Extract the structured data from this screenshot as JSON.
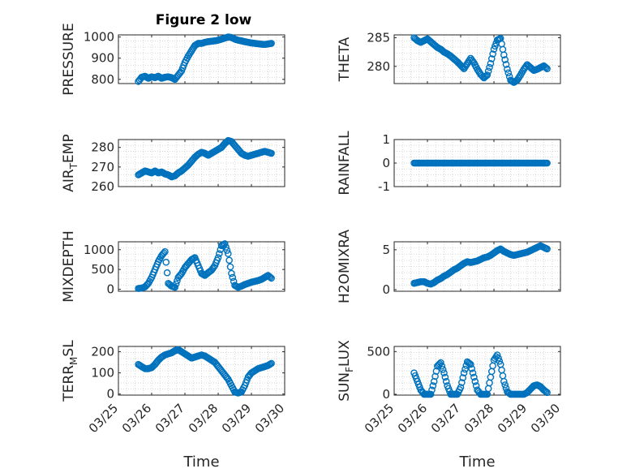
{
  "figure": {
    "title": "Figure 2 low"
  },
  "chart_data": [
    {
      "type": "scatter",
      "ylabel": "PRESSURE",
      "ylim": [
        780,
        1010
      ],
      "yticks": [
        "800",
        "900",
        "1000"
      ],
      "ytickvals": [
        800,
        900,
        1000
      ],
      "title": "Figure 2 low",
      "xlabel": "",
      "color": "#0072bd",
      "x": [
        0.6,
        0.7,
        0.8,
        0.9,
        1.0,
        1.1,
        1.2,
        1.3,
        1.4,
        1.5,
        1.6,
        1.7,
        1.8,
        1.9,
        2.0,
        2.1,
        2.2,
        2.3,
        2.4,
        2.5,
        2.6,
        2.7,
        2.8,
        2.9,
        3.0,
        3.1,
        3.2,
        3.3,
        3.4,
        3.5,
        3.6,
        3.7,
        3.8,
        3.9,
        4.0,
        4.1,
        4.2,
        4.3,
        4.4,
        4.5,
        4.6
      ],
      "y": [
        790,
        810,
        815,
        805,
        812,
        808,
        815,
        805,
        810,
        812,
        808,
        800,
        820,
        840,
        880,
        910,
        935,
        960,
        970,
        970,
        975,
        978,
        980,
        982,
        985,
        990,
        995,
        1000,
        998,
        990,
        985,
        982,
        978,
        975,
        972,
        970,
        968,
        966,
        965,
        967,
        970
      ]
    },
    {
      "type": "scatter",
      "ylabel": "THETA",
      "ylim": [
        277,
        285.5
      ],
      "yticks": [
        "280",
        "285"
      ],
      "ytickvals": [
        280,
        285
      ],
      "xlabel": "",
      "color": "#0072bd",
      "x": [
        0.6,
        0.7,
        0.8,
        0.9,
        1.0,
        1.1,
        1.2,
        1.3,
        1.4,
        1.5,
        1.6,
        1.7,
        1.8,
        1.9,
        2.0,
        2.1,
        2.2,
        2.3,
        2.4,
        2.5,
        2.6,
        2.7,
        2.8,
        2.9,
        3.0,
        3.1,
        3.2,
        3.3,
        3.4,
        3.5,
        3.6,
        3.7,
        3.8,
        3.9,
        4.0,
        4.1,
        4.2,
        4.3,
        4.4,
        4.5,
        4.6
      ],
      "y": [
        285,
        284.5,
        284.2,
        284.5,
        284.8,
        284.3,
        283.8,
        283.3,
        283,
        282.5,
        282.2,
        281.8,
        281.3,
        280.8,
        280.2,
        279.6,
        280.5,
        281.4,
        280.6,
        279.5,
        278.6,
        278,
        278.5,
        280.5,
        283,
        284.6,
        284.9,
        282,
        279.5,
        277.6,
        277.2,
        277.6,
        278.5,
        279.5,
        280.3,
        279.8,
        279.3,
        279.5,
        279.8,
        280.1,
        279.6
      ]
    },
    {
      "type": "scatter",
      "ylabel": "AIR_TEMP",
      "ylim": [
        260,
        284
      ],
      "yticks": [
        "260",
        "270",
        "280"
      ],
      "ytickvals": [
        260,
        270,
        280
      ],
      "xlabel": "",
      "color": "#0072bd",
      "x": [
        0.6,
        0.7,
        0.8,
        0.9,
        1.0,
        1.1,
        1.2,
        1.3,
        1.4,
        1.5,
        1.6,
        1.7,
        1.8,
        1.9,
        2.0,
        2.1,
        2.2,
        2.3,
        2.4,
        2.5,
        2.6,
        2.7,
        2.8,
        2.9,
        3.0,
        3.1,
        3.2,
        3.3,
        3.4,
        3.5,
        3.6,
        3.7,
        3.8,
        3.9,
        4.0,
        4.1,
        4.2,
        4.3,
        4.4,
        4.5,
        4.6
      ],
      "y": [
        266,
        267,
        268,
        267.5,
        267,
        268,
        267,
        267.5,
        266.5,
        266,
        265,
        265.5,
        267,
        268,
        269.5,
        271,
        273,
        275,
        276.5,
        277.5,
        277,
        276,
        277,
        278,
        279,
        280,
        282,
        283.5,
        283,
        281,
        279,
        277,
        276,
        275.5,
        276,
        276.5,
        277,
        277.5,
        278,
        277.5,
        277
      ]
    },
    {
      "type": "scatter",
      "ylabel": "RAINFALL",
      "ylim": [
        -1,
        1
      ],
      "yticks": [
        "-1",
        "0",
        "1"
      ],
      "ytickvals": [
        -1,
        0,
        1
      ],
      "xlabel": "",
      "color": "#0072bd",
      "x": [
        0.6,
        0.7,
        0.8,
        0.9,
        1.0,
        1.1,
        1.2,
        1.3,
        1.4,
        1.5,
        1.6,
        1.7,
        1.8,
        1.9,
        2.0,
        2.1,
        2.2,
        2.3,
        2.4,
        2.5,
        2.6,
        2.7,
        2.8,
        2.9,
        3.0,
        3.1,
        3.2,
        3.3,
        3.4,
        3.5,
        3.6,
        3.7,
        3.8,
        3.9,
        4.0,
        4.1,
        4.2,
        4.3,
        4.4,
        4.5,
        4.6
      ],
      "y": [
        0,
        0,
        0,
        0,
        0,
        0,
        0,
        0,
        0,
        0,
        0,
        0,
        0,
        0,
        0,
        0,
        0,
        0,
        0,
        0,
        0,
        0,
        0,
        0,
        0,
        0,
        0,
        0,
        0,
        0,
        0,
        0,
        0,
        0,
        0,
        0,
        0,
        0,
        0,
        0,
        0
      ]
    },
    {
      "type": "scatter",
      "ylabel": "MIXDEPTH",
      "ylim": [
        -50,
        1200
      ],
      "yticks": [
        "0",
        "500",
        "1000"
      ],
      "ytickvals": [
        0,
        500,
        1000
      ],
      "xlabel": "",
      "color": "#0072bd",
      "x": [
        0.6,
        0.7,
        0.8,
        0.9,
        1.0,
        1.1,
        1.2,
        1.3,
        1.4,
        1.5,
        1.6,
        1.7,
        1.8,
        1.9,
        2.0,
        2.1,
        2.2,
        2.3,
        2.4,
        2.5,
        2.6,
        2.7,
        2.8,
        2.9,
        3.0,
        3.1,
        3.2,
        3.3,
        3.4,
        3.5,
        3.6,
        3.7,
        3.8,
        3.9,
        4.0,
        4.1,
        4.2,
        4.3,
        4.4,
        4.5,
        4.6
      ],
      "y": [
        20,
        30,
        60,
        150,
        300,
        500,
        700,
        850,
        950,
        150,
        80,
        50,
        300,
        400,
        550,
        650,
        750,
        800,
        600,
        400,
        350,
        420,
        480,
        600,
        800,
        1100,
        1150,
        900,
        400,
        100,
        50,
        80,
        120,
        150,
        180,
        200,
        220,
        250,
        300,
        350,
        280
      ]
    },
    {
      "type": "scatter",
      "ylabel": "H2OMIXRA",
      "ylim": [
        -0.2,
        6
      ],
      "yticks": [
        "0",
        "5"
      ],
      "ytickvals": [
        0,
        5
      ],
      "xlabel": "",
      "color": "#0072bd",
      "x": [
        0.6,
        0.7,
        0.8,
        0.9,
        1.0,
        1.1,
        1.2,
        1.3,
        1.4,
        1.5,
        1.6,
        1.7,
        1.8,
        1.9,
        2.0,
        2.1,
        2.2,
        2.3,
        2.4,
        2.5,
        2.6,
        2.7,
        2.8,
        2.9,
        3.0,
        3.1,
        3.2,
        3.3,
        3.4,
        3.5,
        3.6,
        3.7,
        3.8,
        3.9,
        4.0,
        4.1,
        4.2,
        4.3,
        4.4,
        4.5,
        4.6
      ],
      "y": [
        0.8,
        0.9,
        1.0,
        1.0,
        0.8,
        0.7,
        0.9,
        1.2,
        1.4,
        1.7,
        1.9,
        2.2,
        2.5,
        2.7,
        3.0,
        3.3,
        3.5,
        3.4,
        3.5,
        3.6,
        3.8,
        4.0,
        4.1,
        4.3,
        4.6,
        4.9,
        5.1,
        4.8,
        4.6,
        4.4,
        4.3,
        4.4,
        4.5,
        4.6,
        4.7,
        4.9,
        5.1,
        5.3,
        5.5,
        5.3,
        5.1
      ]
    },
    {
      "type": "scatter",
      "ylabel": "TERR_MSL",
      "ylim": [
        -5,
        225
      ],
      "yticks": [
        "0",
        "100",
        "200"
      ],
      "ytickvals": [
        0,
        100,
        200
      ],
      "xlabel": "Time",
      "color": "#0072bd",
      "x": [
        0.6,
        0.7,
        0.8,
        0.9,
        1.0,
        1.1,
        1.2,
        1.3,
        1.4,
        1.5,
        1.6,
        1.7,
        1.8,
        1.9,
        2.0,
        2.1,
        2.2,
        2.3,
        2.4,
        2.5,
        2.6,
        2.7,
        2.8,
        2.9,
        3.0,
        3.1,
        3.2,
        3.3,
        3.4,
        3.5,
        3.6,
        3.7,
        3.8,
        3.9,
        4.0,
        4.1,
        4.2,
        4.3,
        4.4,
        4.5,
        4.6
      ],
      "y": [
        140,
        130,
        120,
        120,
        125,
        140,
        160,
        175,
        185,
        190,
        195,
        205,
        210,
        200,
        190,
        180,
        170,
        175,
        180,
        185,
        180,
        170,
        160,
        150,
        130,
        110,
        90,
        70,
        40,
        10,
        5,
        10,
        40,
        80,
        100,
        110,
        120,
        125,
        130,
        135,
        145
      ]
    },
    {
      "type": "scatter",
      "ylabel": "SUN_FLUX",
      "ylim": [
        -10,
        560
      ],
      "yticks": [
        "0",
        "500"
      ],
      "ytickvals": [
        0,
        500
      ],
      "xlabel": "Time",
      "color": "#0072bd",
      "x": [
        0.6,
        0.7,
        0.8,
        0.9,
        1.0,
        1.1,
        1.2,
        1.3,
        1.4,
        1.5,
        1.6,
        1.7,
        1.8,
        1.9,
        2.0,
        2.1,
        2.2,
        2.3,
        2.4,
        2.5,
        2.6,
        2.7,
        2.8,
        2.9,
        3.0,
        3.1,
        3.2,
        3.3,
        3.4,
        3.5,
        3.6,
        3.7,
        3.8,
        3.9,
        4.0,
        4.1,
        4.2,
        4.3,
        4.4,
        4.5,
        4.6
      ],
      "y": [
        250,
        150,
        50,
        0,
        0,
        0,
        150,
        330,
        370,
        250,
        100,
        0,
        0,
        0,
        80,
        250,
        380,
        350,
        200,
        50,
        0,
        0,
        0,
        200,
        400,
        460,
        350,
        150,
        30,
        0,
        0,
        0,
        0,
        0,
        20,
        60,
        100,
        110,
        90,
        50,
        20
      ]
    }
  ],
  "x_ticks": [
    "03/25",
    "03/26",
    "03/27",
    "03/28",
    "03/29",
    "03/30"
  ],
  "x_tick_vals": [
    0,
    1,
    2,
    3,
    4,
    5
  ],
  "xlim": [
    0,
    5
  ],
  "ylabel_parts": {
    "AIR_TEMP": [
      "AIR",
      "T",
      "EMP"
    ],
    "TERR_MSL": [
      "TERR",
      "M",
      "SL"
    ],
    "SUN_FLUX": [
      "SUN",
      "F",
      "LUX"
    ]
  }
}
